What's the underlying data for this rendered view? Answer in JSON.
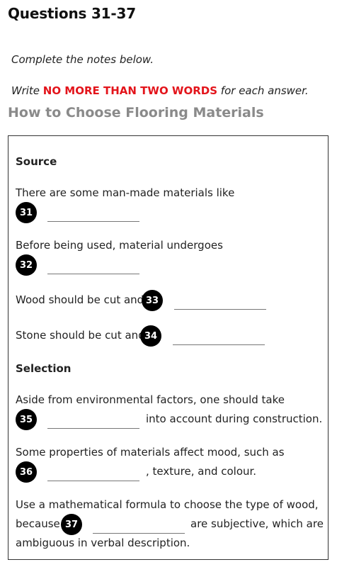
{
  "heading": "Questions 31-37",
  "instructions": {
    "line1": "Complete the notes below.",
    "line2_pre": "Write ",
    "line2_em": "NO MORE THAN TWO WORDS",
    "line2_post": " for each answer."
  },
  "title": "How to Choose Flooring Materials",
  "sections": {
    "source": "Source",
    "selection": "Selection"
  },
  "items": {
    "q31": {
      "number": "31",
      "text": "There are some man-made materials like",
      "answer": ""
    },
    "q32": {
      "number": "32",
      "text": "Before being used, material undergoes",
      "answer": ""
    },
    "q33": {
      "number": "33",
      "text": "Wood should be cut and",
      "answer": ""
    },
    "q34": {
      "number": "34",
      "text": "Stone should be cut and",
      "answer": ""
    },
    "q35": {
      "number": "35",
      "text": "Aside from environmental factors, one should take",
      "after": "into account during construction.",
      "answer": ""
    },
    "q36": {
      "number": "36",
      "text": "Some properties of materials affect mood, such as",
      "after": ", texture, and colour.",
      "answer": ""
    },
    "q37": {
      "number": "37",
      "text": "Use a mathematical formula to choose the type of wood,",
      "before": "because",
      "after": "are subjective, which are",
      "tail": "ambiguous in verbal description.",
      "answer": ""
    }
  }
}
